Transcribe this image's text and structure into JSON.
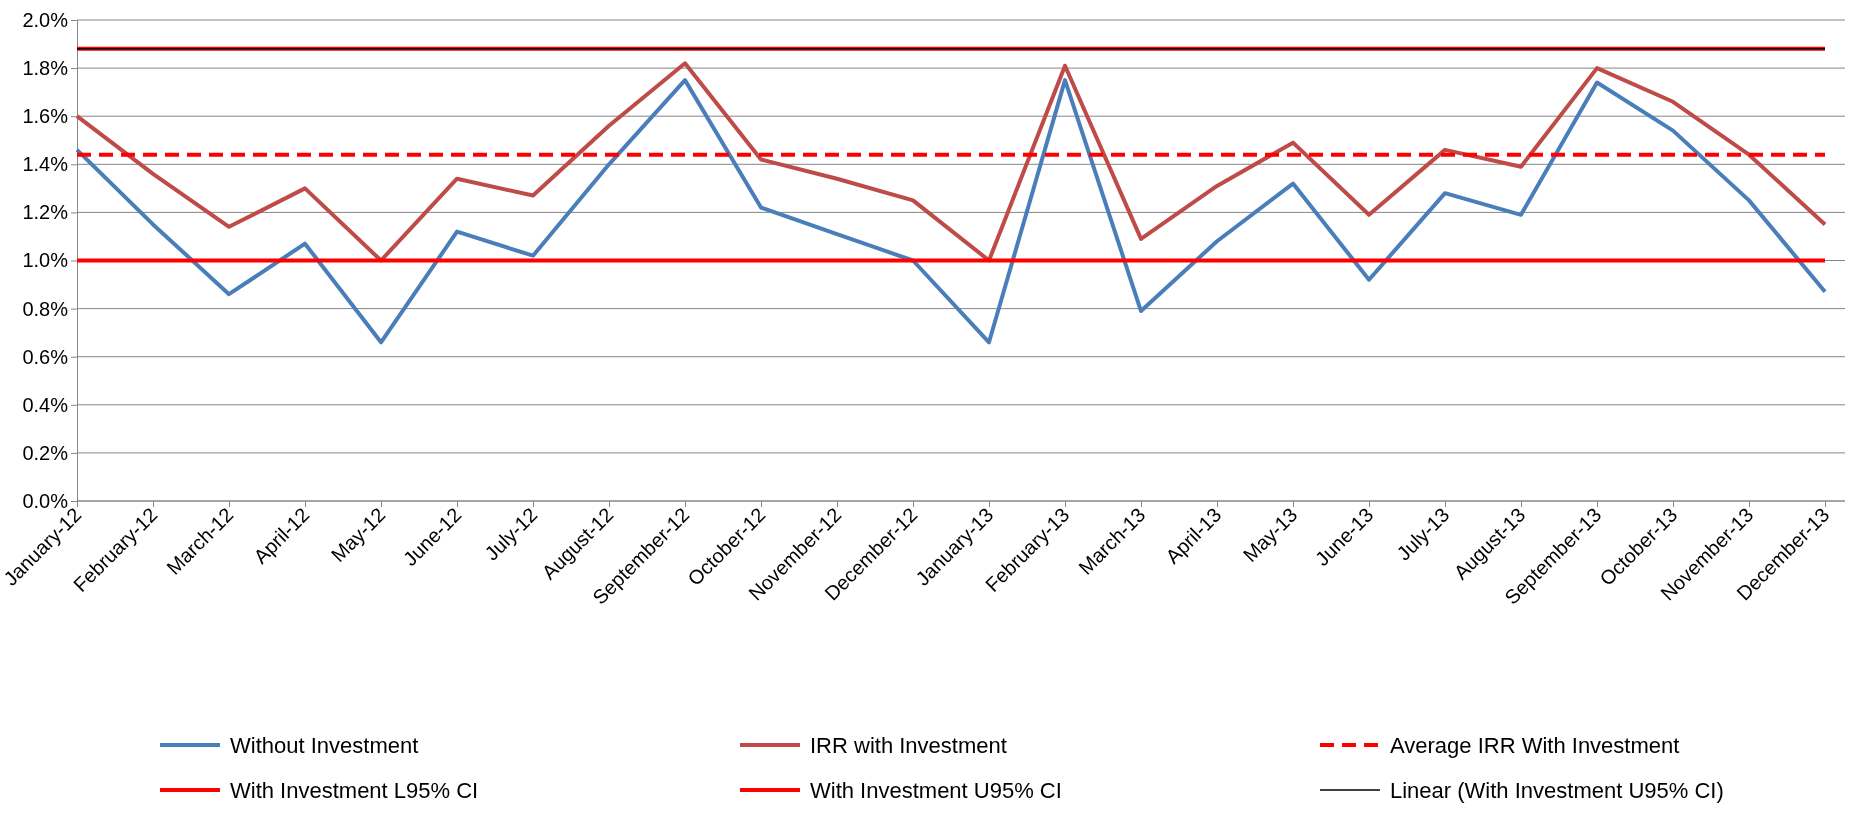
{
  "chart_data": {
    "type": "line",
    "categories": [
      "January-12",
      "February-12",
      "March-12",
      "April-12",
      "May-12",
      "June-12",
      "July-12",
      "August-12",
      "September-12",
      "October-12",
      "November-12",
      "December-12",
      "January-13",
      "February-13",
      "March-13",
      "April-13",
      "May-13",
      "June-13",
      "July-13",
      "August-13",
      "September-13",
      "October-13",
      "November-13",
      "December-13"
    ],
    "series": [
      {
        "name": "Without Investment",
        "color": "#4a7ebb",
        "values": [
          1.46,
          1.15,
          0.86,
          1.07,
          0.66,
          1.12,
          1.02,
          1.4,
          1.75,
          1.22,
          1.11,
          1.0,
          0.66,
          1.75,
          0.79,
          1.08,
          1.32,
          0.92,
          1.28,
          1.19,
          1.74,
          1.54,
          1.25,
          0.87
        ]
      },
      {
        "name": "IRR with Investment",
        "color": "#be4b48",
        "values": [
          1.6,
          1.36,
          1.14,
          1.3,
          1.0,
          1.34,
          1.27,
          1.56,
          1.82,
          1.42,
          1.34,
          1.25,
          1.0,
          1.81,
          1.09,
          1.31,
          1.49,
          1.19,
          1.46,
          1.39,
          1.8,
          1.66,
          1.44,
          1.15
        ]
      },
      {
        "name": "Average IRR With Investment",
        "color": "#ff0000",
        "line_style": "dashed",
        "values": [
          1.44,
          1.44,
          1.44,
          1.44,
          1.44,
          1.44,
          1.44,
          1.44,
          1.44,
          1.44,
          1.44,
          1.44,
          1.44,
          1.44,
          1.44,
          1.44,
          1.44,
          1.44,
          1.44,
          1.44,
          1.44,
          1.44,
          1.44,
          1.44
        ]
      },
      {
        "name": "With Investment L95% CI",
        "color": "#ff0000",
        "values": [
          1.0,
          1.0,
          1.0,
          1.0,
          1.0,
          1.0,
          1.0,
          1.0,
          1.0,
          1.0,
          1.0,
          1.0,
          1.0,
          1.0,
          1.0,
          1.0,
          1.0,
          1.0,
          1.0,
          1.0,
          1.0,
          1.0,
          1.0,
          1.0
        ]
      },
      {
        "name": "With Investment U95% CI",
        "color": "#ff0000",
        "values": [
          1.88,
          1.88,
          1.88,
          1.88,
          1.88,
          1.88,
          1.88,
          1.88,
          1.88,
          1.88,
          1.88,
          1.88,
          1.88,
          1.88,
          1.88,
          1.88,
          1.88,
          1.88,
          1.88,
          1.88,
          1.88,
          1.88,
          1.88,
          1.88
        ]
      },
      {
        "name": "Linear (With Investment U95% CI)",
        "color": "#000000",
        "values": [
          1.88,
          1.88,
          1.88,
          1.88,
          1.88,
          1.88,
          1.88,
          1.88,
          1.88,
          1.88,
          1.88,
          1.88,
          1.88,
          1.88,
          1.88,
          1.88,
          1.88,
          1.88,
          1.88,
          1.88,
          1.88,
          1.88,
          1.88,
          1.88
        ]
      }
    ],
    "ylim": [
      0,
      2
    ],
    "yticks": [
      {
        "value": 0,
        "label": "0.0%"
      },
      {
        "value": 0.2,
        "label": "0.2%"
      },
      {
        "value": 0.4,
        "label": "0.4%"
      },
      {
        "value": 0.6,
        "label": "0.6%"
      },
      {
        "value": 0.8,
        "label": "0.8%"
      },
      {
        "value": 1,
        "label": "1.0%"
      },
      {
        "value": 1.2,
        "label": "1.2%"
      },
      {
        "value": 1.4,
        "label": "1.4%"
      },
      {
        "value": 1.6,
        "label": "1.6%"
      },
      {
        "value": 1.8,
        "label": "1.8%"
      },
      {
        "value": 2,
        "label": "2.0%"
      }
    ],
    "grid": "y",
    "legend": "bottom",
    "marker": "none",
    "line_style": "solid"
  }
}
